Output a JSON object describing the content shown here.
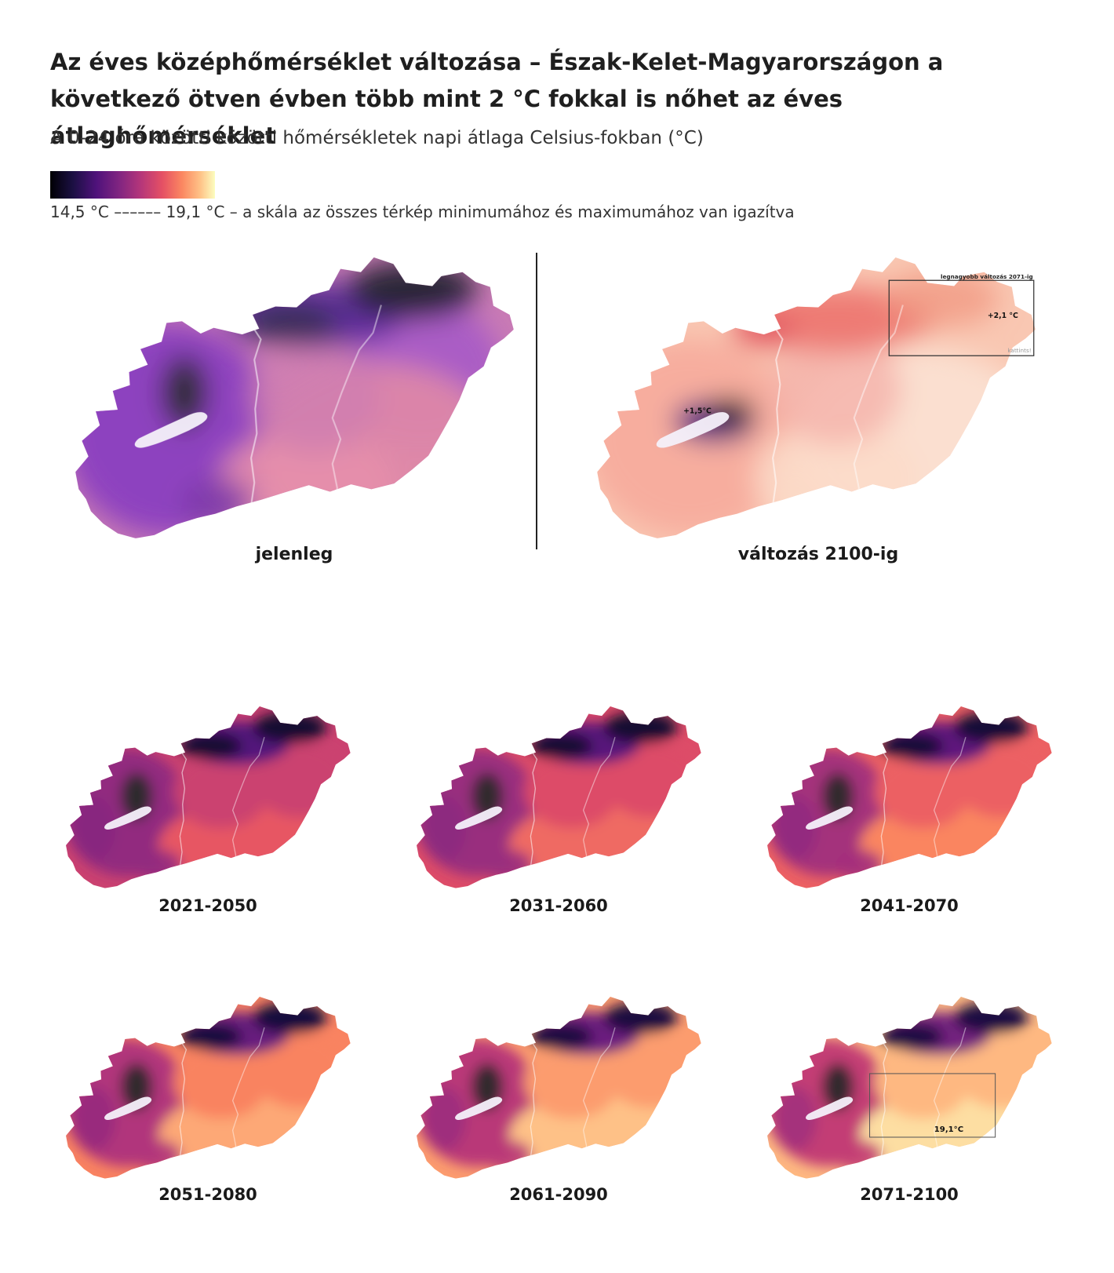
{
  "title": "Az éves középhőmérséklet változása – Észak-Kelet-Magyarországon a következő ötven évben több mint 2 °C fokkal is nőhet az éves átlaghőmérséklet",
  "subtitle": "A 0-24 óra közötti közötti hőmérsékletek napi átlaga Celsius-fokban (°C)",
  "legend": {
    "text": "14,5 °C –––––– 19,1 °C – a skála az összes térkép minimumához és maximumához van igazítva",
    "min": 14.5,
    "max": 19.1,
    "colors": [
      "#000004",
      "#4f127b",
      "#b5367a",
      "#fb8761",
      "#fcfdbf"
    ]
  },
  "maps": {
    "current": {
      "label": "jelenleg"
    },
    "change": {
      "label": "változás 2100-ig",
      "balaton_annotation": "+1,5°C",
      "box_title": "legnagyobb változás 2071-ig",
      "box_value": "+2,1 °C",
      "box_hint": "kattints!"
    },
    "periods": [
      {
        "label": "2021-2050",
        "warm": 0.1
      },
      {
        "label": "2031-2060",
        "warm": 0.22
      },
      {
        "label": "2041-2070",
        "warm": 0.38
      },
      {
        "label": "2051-2080",
        "warm": 0.58
      },
      {
        "label": "2061-2090",
        "warm": 0.72
      },
      {
        "label": "2071-2100",
        "warm": 0.88,
        "box_value": "19,1°C"
      }
    ]
  }
}
